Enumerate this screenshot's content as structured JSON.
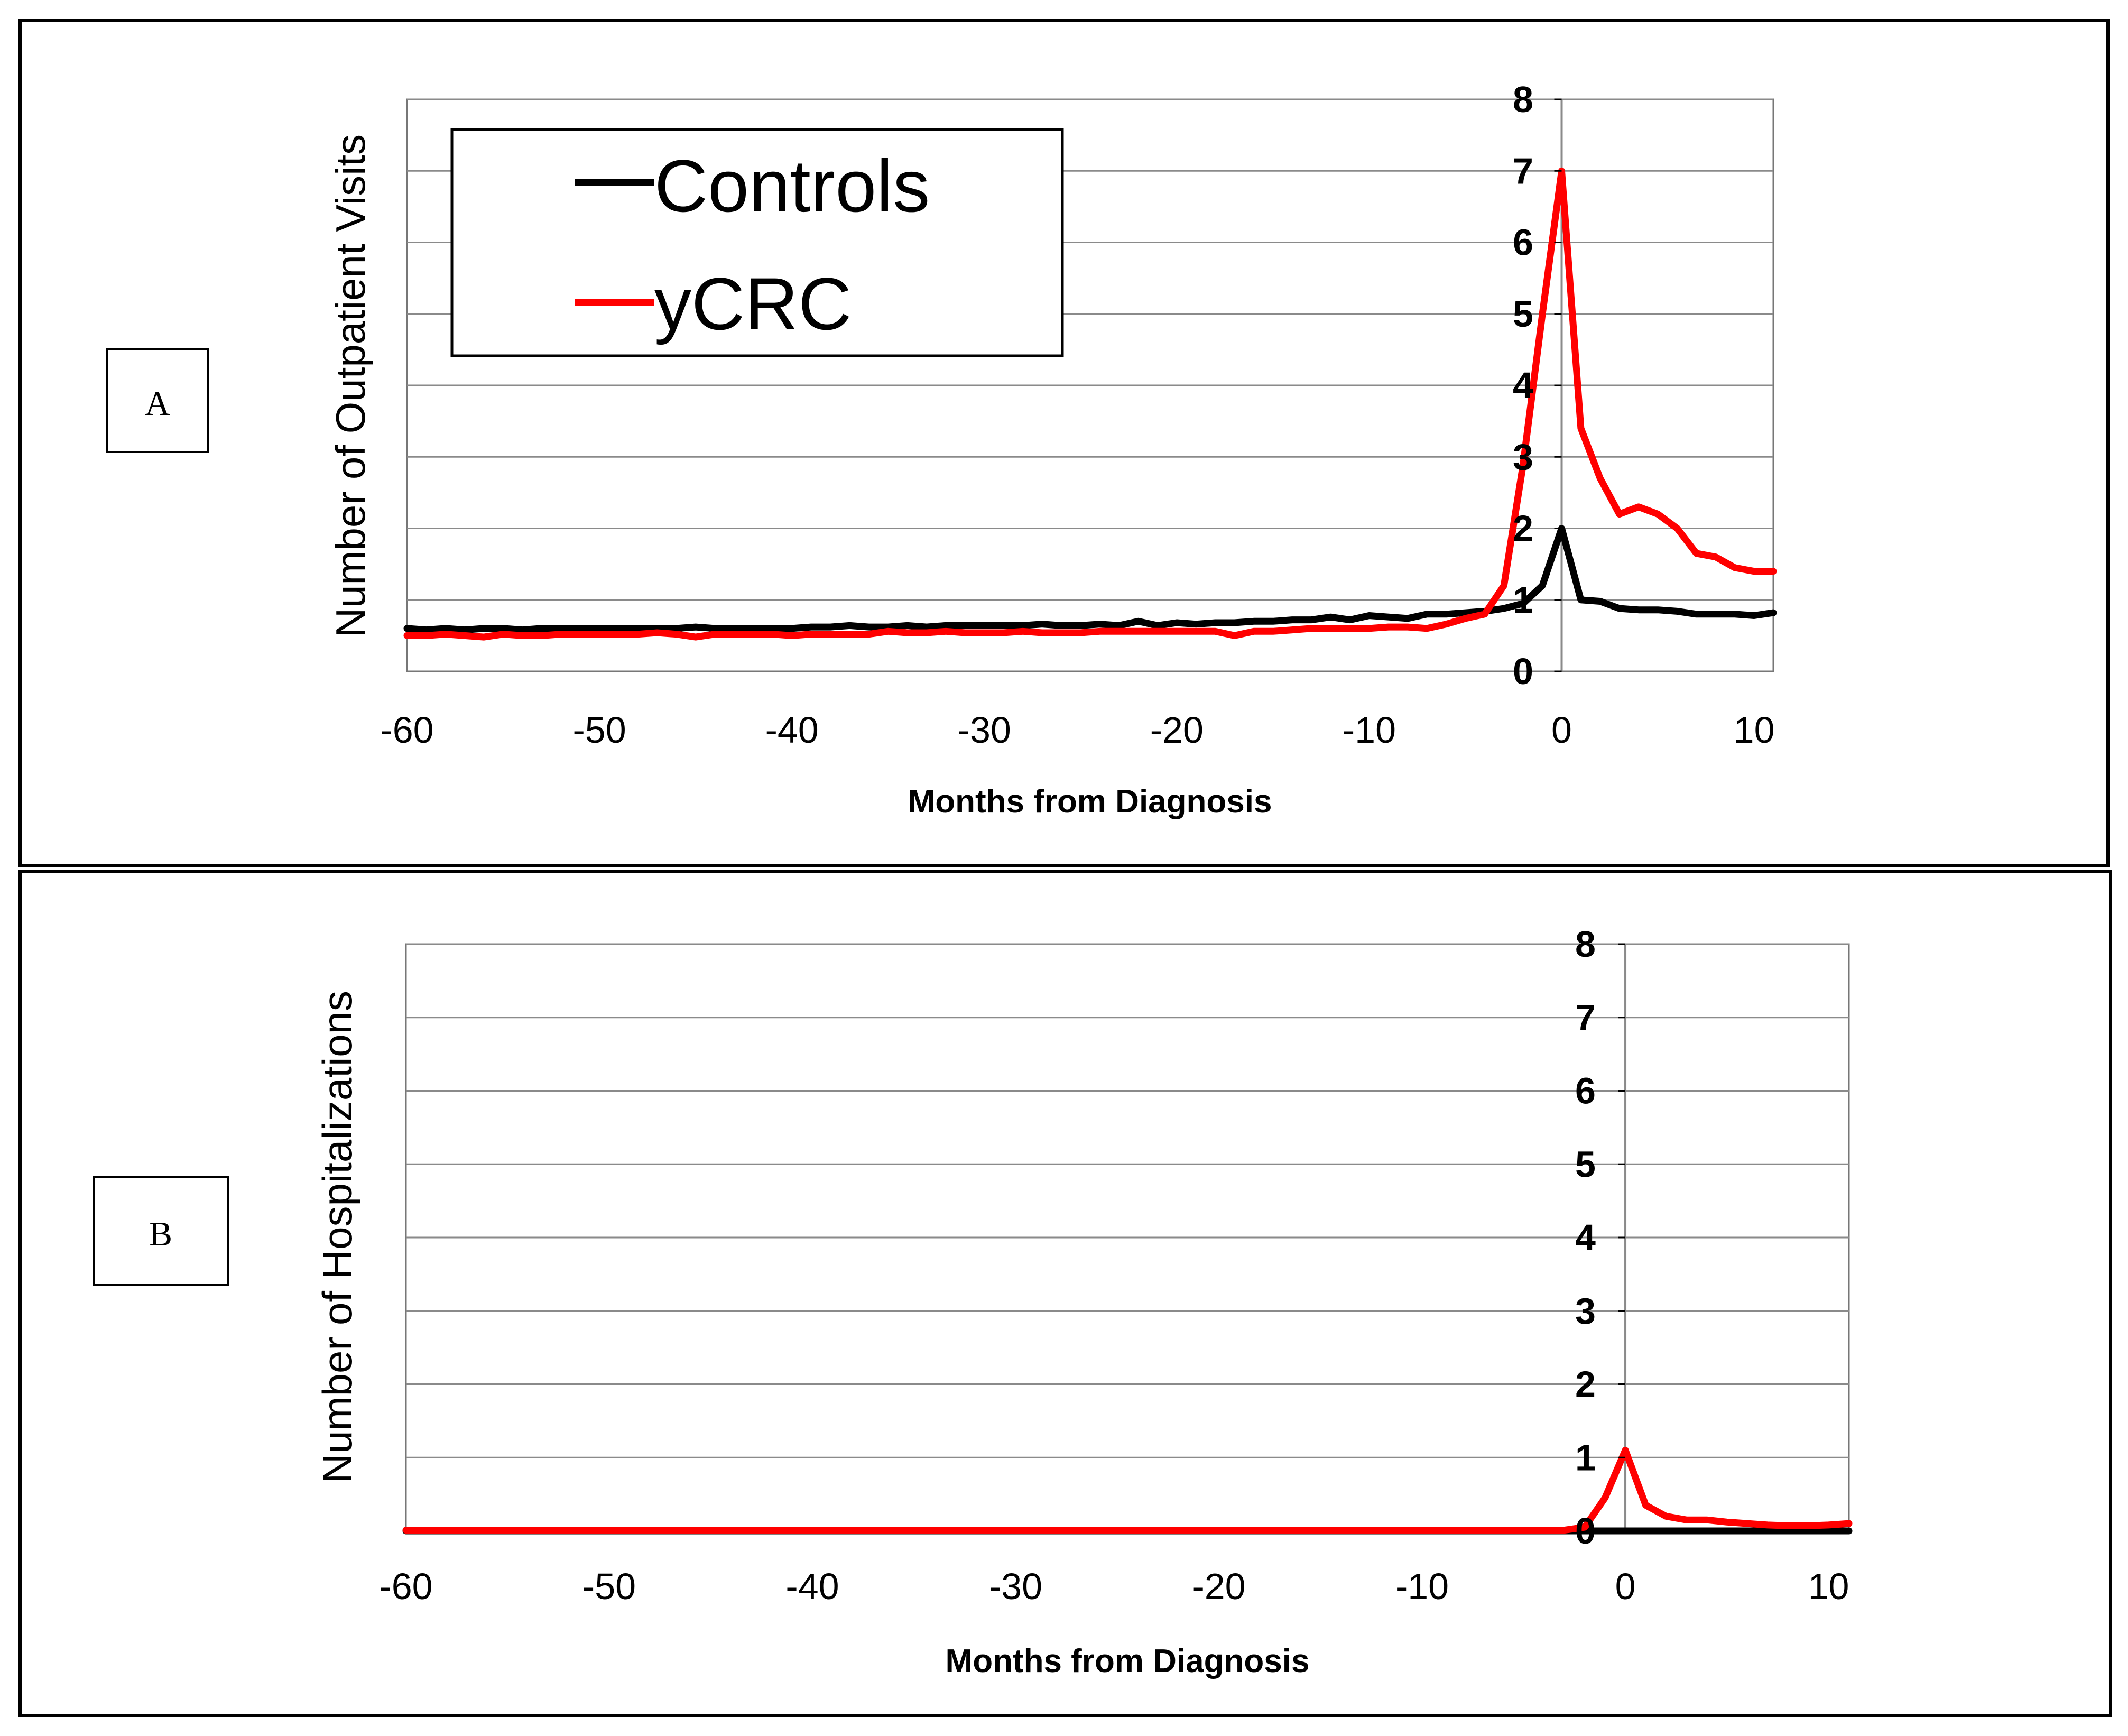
{
  "chart_data": [
    {
      "panel_label": "A",
      "type": "line",
      "xlabel": "Months from Diagnosis",
      "ylabel": "Number of Outpatient Visits",
      "xlim": [
        -60,
        11
      ],
      "ylim": [
        0,
        8
      ],
      "x_ticks": [
        -60,
        -50,
        -40,
        -30,
        -20,
        -10,
        0,
        10
      ],
      "y_ticks": [
        0,
        1,
        2,
        3,
        4,
        5,
        6,
        7,
        8
      ],
      "grid": true,
      "legend": {
        "placement": "top-left",
        "entries": [
          "Controls",
          "yCRC"
        ]
      },
      "x": [
        -60,
        -59,
        -58,
        -57,
        -56,
        -55,
        -54,
        -53,
        -52,
        -51,
        -50,
        -49,
        -48,
        -47,
        -46,
        -45,
        -44,
        -43,
        -42,
        -41,
        -40,
        -39,
        -38,
        -37,
        -36,
        -35,
        -34,
        -33,
        -32,
        -31,
        -30,
        -29,
        -28,
        -27,
        -26,
        -25,
        -24,
        -23,
        -22,
        -21,
        -20,
        -19,
        -18,
        -17,
        -16,
        -15,
        -14,
        -13,
        -12,
        -11,
        -10,
        -9,
        -8,
        -7,
        -6,
        -5,
        -4,
        -3,
        -2,
        -1,
        0,
        1,
        2,
        3,
        4,
        5,
        6,
        7,
        8,
        9,
        10,
        11
      ],
      "series": [
        {
          "name": "Controls",
          "color": "#000000",
          "values": [
            0.6,
            0.58,
            0.6,
            0.58,
            0.6,
            0.6,
            0.58,
            0.6,
            0.6,
            0.6,
            0.6,
            0.6,
            0.6,
            0.6,
            0.6,
            0.62,
            0.6,
            0.6,
            0.6,
            0.6,
            0.6,
            0.62,
            0.62,
            0.64,
            0.62,
            0.62,
            0.64,
            0.62,
            0.64,
            0.64,
            0.64,
            0.64,
            0.64,
            0.66,
            0.64,
            0.64,
            0.66,
            0.64,
            0.7,
            0.64,
            0.68,
            0.66,
            0.68,
            0.68,
            0.7,
            0.7,
            0.72,
            0.72,
            0.76,
            0.72,
            0.78,
            0.76,
            0.74,
            0.8,
            0.8,
            0.82,
            0.84,
            0.88,
            0.95,
            1.2,
            2.0,
            1.0,
            0.98,
            0.88,
            0.86,
            0.86,
            0.84,
            0.8,
            0.8,
            0.8,
            0.78,
            0.82
          ]
        },
        {
          "name": "yCRC",
          "color": "#ff0000",
          "values": [
            0.5,
            0.5,
            0.52,
            0.5,
            0.48,
            0.52,
            0.5,
            0.5,
            0.52,
            0.52,
            0.52,
            0.52,
            0.52,
            0.54,
            0.52,
            0.48,
            0.52,
            0.52,
            0.52,
            0.52,
            0.5,
            0.52,
            0.52,
            0.52,
            0.52,
            0.56,
            0.54,
            0.54,
            0.56,
            0.54,
            0.54,
            0.54,
            0.56,
            0.54,
            0.54,
            0.54,
            0.56,
            0.56,
            0.56,
            0.56,
            0.56,
            0.56,
            0.56,
            0.5,
            0.56,
            0.56,
            0.58,
            0.6,
            0.6,
            0.6,
            0.6,
            0.62,
            0.62,
            0.6,
            0.66,
            0.74,
            0.8,
            1.2,
            2.9,
            5.0,
            7.0,
            3.4,
            2.7,
            2.2,
            2.3,
            2.2,
            2.0,
            1.65,
            1.6,
            1.45,
            1.4,
            1.4
          ]
        }
      ]
    },
    {
      "panel_label": "B",
      "type": "line",
      "xlabel": "Months from Diagnosis",
      "ylabel": "Number of Hospitalizations",
      "xlim": [
        -60,
        11
      ],
      "ylim": [
        0,
        8
      ],
      "x_ticks": [
        -60,
        -50,
        -40,
        -30,
        -20,
        -10,
        0,
        10
      ],
      "y_ticks": [
        0,
        1,
        2,
        3,
        4,
        5,
        6,
        7,
        8
      ],
      "grid": true,
      "x": [
        -60,
        -59,
        -58,
        -57,
        -56,
        -55,
        -54,
        -53,
        -52,
        -51,
        -50,
        -49,
        -48,
        -47,
        -46,
        -45,
        -44,
        -43,
        -42,
        -41,
        -40,
        -39,
        -38,
        -37,
        -36,
        -35,
        -34,
        -33,
        -32,
        -31,
        -30,
        -29,
        -28,
        -27,
        -26,
        -25,
        -24,
        -23,
        -22,
        -21,
        -20,
        -19,
        -18,
        -17,
        -16,
        -15,
        -14,
        -13,
        -12,
        -11,
        -10,
        -9,
        -8,
        -7,
        -6,
        -5,
        -4,
        -3,
        -2,
        -1,
        0,
        1,
        2,
        3,
        4,
        5,
        6,
        7,
        8,
        9,
        10,
        11
      ],
      "series": [
        {
          "name": "Controls",
          "color": "#000000",
          "values": [
            0,
            0,
            0,
            0,
            0,
            0,
            0,
            0,
            0,
            0,
            0,
            0,
            0,
            0,
            0,
            0,
            0,
            0,
            0,
            0,
            0,
            0,
            0,
            0,
            0,
            0,
            0,
            0,
            0,
            0,
            0,
            0,
            0,
            0,
            0,
            0,
            0,
            0,
            0,
            0,
            0,
            0,
            0,
            0,
            0,
            0,
            0,
            0,
            0,
            0,
            0,
            0,
            0,
            0,
            0,
            0,
            0,
            0,
            0,
            0,
            0,
            0,
            0,
            0,
            0,
            0,
            0,
            0,
            0,
            0,
            0,
            0
          ]
        },
        {
          "name": "yCRC",
          "color": "#ff0000",
          "values": [
            0.01,
            0.01,
            0.01,
            0.01,
            0.01,
            0.01,
            0.01,
            0.01,
            0.01,
            0.01,
            0.01,
            0.01,
            0.01,
            0.01,
            0.01,
            0.01,
            0.01,
            0.01,
            0.01,
            0.01,
            0.01,
            0.01,
            0.01,
            0.01,
            0.01,
            0.01,
            0.01,
            0.01,
            0.01,
            0.01,
            0.01,
            0.01,
            0.01,
            0.01,
            0.01,
            0.01,
            0.01,
            0.01,
            0.01,
            0.01,
            0.01,
            0.01,
            0.01,
            0.01,
            0.01,
            0.01,
            0.01,
            0.01,
            0.01,
            0.01,
            0.01,
            0.01,
            0.01,
            0.01,
            0.01,
            0.01,
            0.01,
            0.01,
            0.05,
            0.45,
            1.1,
            0.35,
            0.2,
            0.15,
            0.15,
            0.12,
            0.1,
            0.08,
            0.07,
            0.07,
            0.08,
            0.1
          ]
        }
      ]
    }
  ]
}
